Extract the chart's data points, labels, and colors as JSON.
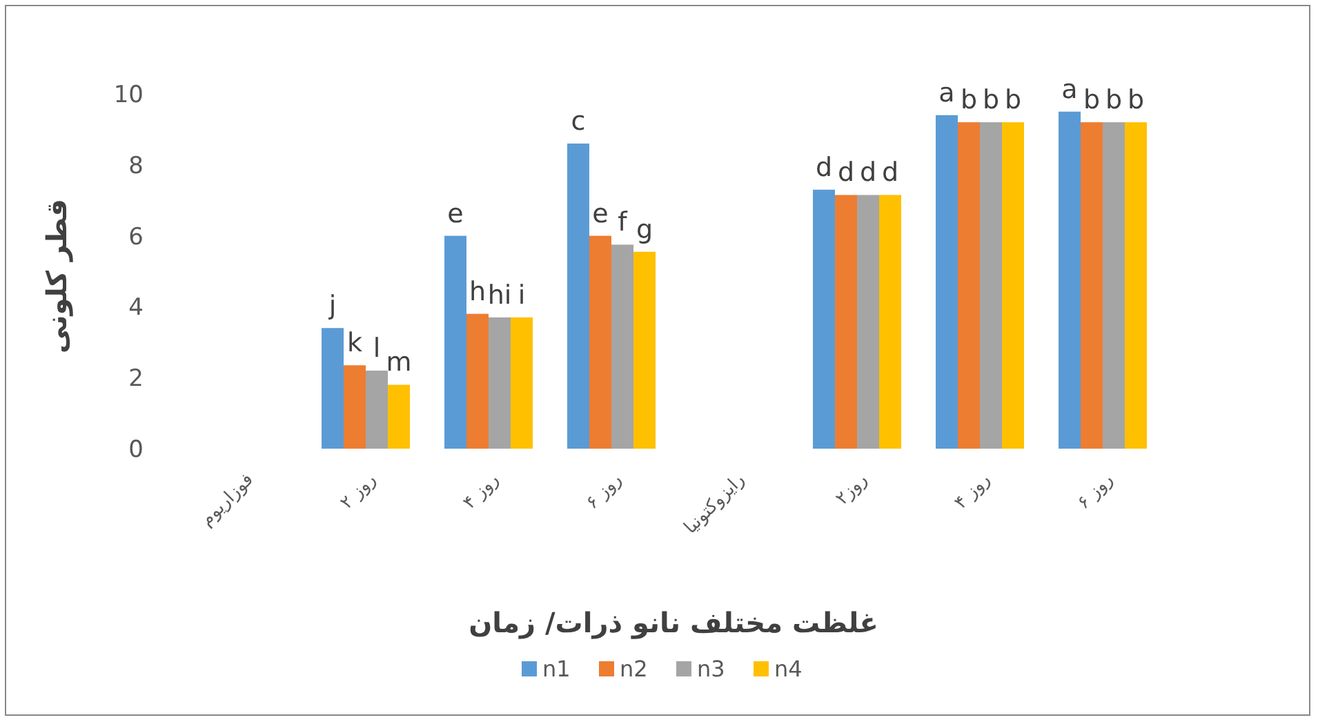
{
  "chart_data": {
    "type": "bar",
    "xlabel": "غلظت مختلف نانو ذرات/ زمان",
    "ylabel": "قطر کلونی",
    "categories": [
      "فوزاریوم",
      "۲ روز",
      "۴ روز",
      "۶ روز",
      "رایزوکتونیا",
      "۲روز",
      "۴ روز",
      "۶ روز"
    ],
    "series": [
      {
        "name": "n1",
        "color": "#5b9bd5",
        "values": [
          null,
          3.4,
          6.0,
          8.6,
          null,
          7.3,
          9.4,
          9.5
        ],
        "value_labels": [
          null,
          "j",
          "e",
          "c",
          null,
          "d",
          "a",
          "a"
        ]
      },
      {
        "name": "n2",
        "color": "#ed7d31",
        "values": [
          null,
          2.35,
          3.8,
          6.0,
          null,
          7.15,
          9.2,
          9.2
        ],
        "value_labels": [
          null,
          "k",
          "h",
          "e",
          null,
          "d",
          "b",
          "b"
        ]
      },
      {
        "name": "n3",
        "color": "#a5a5a5",
        "values": [
          null,
          2.2,
          3.7,
          5.75,
          null,
          7.15,
          9.2,
          9.2
        ],
        "value_labels": [
          null,
          "l",
          "hi",
          "f",
          null,
          "d",
          "b",
          "b"
        ]
      },
      {
        "name": "n4",
        "color": "#ffc000",
        "values": [
          null,
          1.8,
          3.7,
          5.55,
          null,
          7.15,
          9.2,
          9.2
        ],
        "value_labels": [
          null,
          "m",
          "i",
          "g",
          null,
          "d",
          "b",
          "b"
        ]
      }
    ],
    "ylim": [
      0,
      10
    ],
    "yticks": [
      0,
      2,
      4,
      6,
      8,
      10
    ],
    "grid": false,
    "legend": "bottom"
  }
}
